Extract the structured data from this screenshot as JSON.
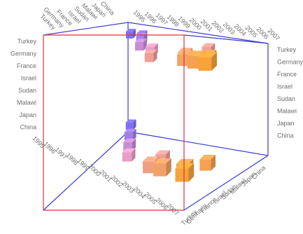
{
  "chart_data": {
    "type": "scatter",
    "title": "",
    "projection": "3d-box",
    "x_axis": {
      "label": "",
      "categories": [
        "1995",
        "1996",
        "1997",
        "1998",
        "1999",
        "2000",
        "2001",
        "2002",
        "2003",
        "2004",
        "2005",
        "2006",
        "2007"
      ]
    },
    "y_axis": {
      "label": "",
      "categories": [
        "China",
        "Japan",
        "Malawi",
        "Sudan",
        "Israel",
        "France",
        "Germany",
        "Turkey"
      ]
    },
    "z_layers": [
      {
        "name": "top layer"
      },
      {
        "name": "bottom layer"
      }
    ],
    "color_scale": {
      "from": "#7f6ff5",
      "mid": "#e99ec5",
      "to": "#f7a23a"
    },
    "box_edge_colors": {
      "front": "#d8343b",
      "back": "#3b3ad8"
    },
    "grid": false,
    "legend": "none",
    "note_marks": "cube size encodes value; cubes in the upper plane form the top layer and cubes in the lower plane form the bottom layer",
    "points": [
      {
        "layer": 0,
        "x": "1995",
        "y": "Turkey",
        "size": 0.35
      },
      {
        "layer": 0,
        "x": "1996",
        "y": "Turkey",
        "size": 0.4
      },
      {
        "layer": 0,
        "x": "1997",
        "y": "Germany",
        "size": 0.45
      },
      {
        "layer": 0,
        "x": "1999",
        "y": "Israel",
        "size": 0.5
      },
      {
        "layer": 0,
        "x": "2001",
        "y": "Sudan",
        "size": 0.55
      },
      {
        "layer": 0,
        "x": "2003",
        "y": "Germany",
        "size": 0.6
      },
      {
        "layer": 0,
        "x": "2004",
        "y": "Sudan",
        "size": 0.7
      },
      {
        "layer": 0,
        "x": "2005",
        "y": "Malawi",
        "size": 0.8
      },
      {
        "layer": 0,
        "x": "2006",
        "y": "Malawi",
        "size": 0.95
      },
      {
        "layer": 0,
        "x": "2007",
        "y": "Malawi",
        "size": 1.0
      },
      {
        "layer": 0,
        "x": "2006",
        "y": "Sudan",
        "size": 0.9
      },
      {
        "layer": 0,
        "x": "2003",
        "y": "Japan",
        "size": 0.55
      },
      {
        "layer": 1,
        "x": "1995",
        "y": "Turkey",
        "size": 0.4
      },
      {
        "layer": 1,
        "x": "1997",
        "y": "France",
        "size": 0.5
      },
      {
        "layer": 1,
        "x": "1999",
        "y": "Sudan",
        "size": 0.55
      },
      {
        "layer": 1,
        "x": "2001",
        "y": "Japan",
        "size": 0.6
      },
      {
        "layer": 1,
        "x": "2003",
        "y": "Malawi",
        "size": 0.7
      },
      {
        "layer": 1,
        "x": "2004",
        "y": "China",
        "size": 0.85
      },
      {
        "layer": 1,
        "x": "2005",
        "y": "China",
        "size": 0.95
      },
      {
        "layer": 1,
        "x": "2006",
        "y": "Japan",
        "size": 0.9
      },
      {
        "layer": 1,
        "x": "2007",
        "y": "China",
        "size": 1.0
      },
      {
        "layer": 1,
        "x": "2006",
        "y": "Sudan",
        "size": 0.8
      }
    ]
  },
  "axis_label_sets": {
    "top_back_countries": [
      "China",
      "Japan",
      "Malawi",
      "Sudan",
      "Israel",
      "France",
      "Germany",
      "Turkey"
    ],
    "top_back_years": [
      "1995",
      "1996",
      "1997",
      "1998",
      "1999",
      "2000",
      "2001",
      "2002",
      "2003",
      "2004",
      "2005",
      "2006",
      "2007"
    ],
    "left_countries": [
      "Turkey",
      "Germany",
      "France",
      "Israel",
      "Sudan",
      "Malawi",
      "Japan",
      "China"
    ],
    "right_countries": [
      "Turkey",
      "Germany",
      "France",
      "Israel",
      "Sudan",
      "Malawi",
      "Japan",
      "China"
    ],
    "bottom_years": [
      "1995",
      "1996",
      "1997",
      "1998",
      "1999",
      "2000",
      "2001",
      "2002",
      "2003",
      "2004",
      "2005",
      "2006",
      "2007"
    ],
    "bottom_right_countries": [
      "China",
      "Japan",
      "Malawi",
      "Sudan",
      "Israel",
      "France",
      "Germany",
      "Turkey"
    ]
  }
}
